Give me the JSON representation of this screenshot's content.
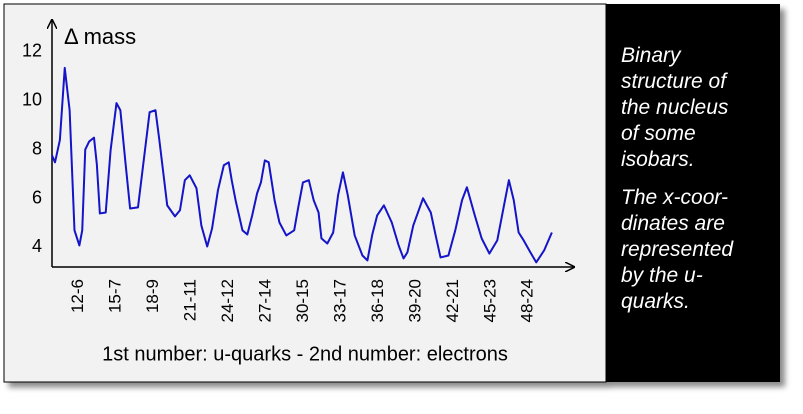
{
  "chart_data": {
    "type": "line",
    "y_label": "Δ mass",
    "x_label": "1st number: u-quarks - 2nd number: electrons",
    "color": "#1414c8",
    "x": [
      9.89,
      10.13,
      10.52,
      10.91,
      11.3,
      11.69,
      12.08,
      12.31,
      12.55,
      12.86,
      13.25,
      13.48,
      13.72,
      14.19,
      14.58,
      15.05,
      15.36,
      15.75,
      16.14,
      16.77,
      17.23,
      17.7,
      18.17,
      18.48,
      19.11,
      19.73,
      20.13,
      20.52,
      20.91,
      21.45,
      21.84,
      22.31,
      22.7,
      23.17,
      23.64,
      24.03,
      24.27,
      24.58,
      25.13,
      25.52,
      25.91,
      26.3,
      26.61,
      26.92,
      27.23,
      27.7,
      28.09,
      28.64,
      29.27,
      29.58,
      29.97,
      30.44,
      30.83,
      31.22,
      31.45,
      31.92,
      32.39,
      32.78,
      33.17,
      33.56,
      34.11,
      34.73,
      35.13,
      35.52,
      35.91,
      36.45,
      37.08,
      37.63,
      38.02,
      38.33,
      38.8,
      39.58,
      40.2,
      40.59,
      40.98,
      41.61,
      42.16,
      42.7,
      43.09,
      43.72,
      44.27,
      44.89,
      45.52,
      46.06,
      46.45,
      46.84,
      47.23,
      47.63,
      48.17,
      48.64,
      49.27,
      49.89
    ],
    "values": [
      7.77,
      7.48,
      8.39,
      11.34,
      9.61,
      4.7,
      4.08,
      4.7,
      8.0,
      8.33,
      8.49,
      7.39,
      5.39,
      5.43,
      7.98,
      9.9,
      9.61,
      7.56,
      5.59,
      5.64,
      7.56,
      9.53,
      9.61,
      8.39,
      5.72,
      5.27,
      5.52,
      6.75,
      6.95,
      6.42,
      4.9,
      4.04,
      4.78,
      6.34,
      7.36,
      7.48,
      6.75,
      5.93,
      4.7,
      4.53,
      5.31,
      6.21,
      6.66,
      7.56,
      7.48,
      5.93,
      5.02,
      4.49,
      4.7,
      5.6,
      6.66,
      6.75,
      5.93,
      5.43,
      4.37,
      4.16,
      4.61,
      6.13,
      7.07,
      6.13,
      4.49,
      3.67,
      3.47,
      4.53,
      5.31,
      5.72,
      5.02,
      4.08,
      3.55,
      3.8,
      4.9,
      6.01,
      5.43,
      4.49,
      3.59,
      3.67,
      4.7,
      5.93,
      6.46,
      5.31,
      4.37,
      3.75,
      4.29,
      5.72,
      6.75,
      5.93,
      4.61,
      4.29,
      3.8,
      3.39,
      3.88,
      4.61
    ],
    "xlim": [
      9.89,
      51.5
    ],
    "ylim": [
      3.2,
      13.3
    ],
    "xticks": [
      {
        "value": 12,
        "label": "12-6"
      },
      {
        "value": 15,
        "label": "15-7"
      },
      {
        "value": 18,
        "label": "18-9"
      },
      {
        "value": 21,
        "label": "21-11"
      },
      {
        "value": 24,
        "label": "24-12"
      },
      {
        "value": 27,
        "label": "27-14"
      },
      {
        "value": 30,
        "label": "30-15"
      },
      {
        "value": 33,
        "label": "33-17"
      },
      {
        "value": 36,
        "label": "36-18"
      },
      {
        "value": 39,
        "label": "39-20"
      },
      {
        "value": 42,
        "label": "42-21"
      },
      {
        "value": 45,
        "label": "45-23"
      },
      {
        "value": 48,
        "label": "48-24"
      }
    ],
    "yticks": [
      4,
      6,
      8,
      10,
      12
    ]
  },
  "side_text": {
    "paragraphs": [
      [
        "Binary",
        "structure of",
        "the nucleus",
        "of some",
        "isobars."
      ],
      [
        "The x-coor-",
        "dinates are",
        "represented",
        "by the u-",
        "quarks."
      ]
    ]
  }
}
